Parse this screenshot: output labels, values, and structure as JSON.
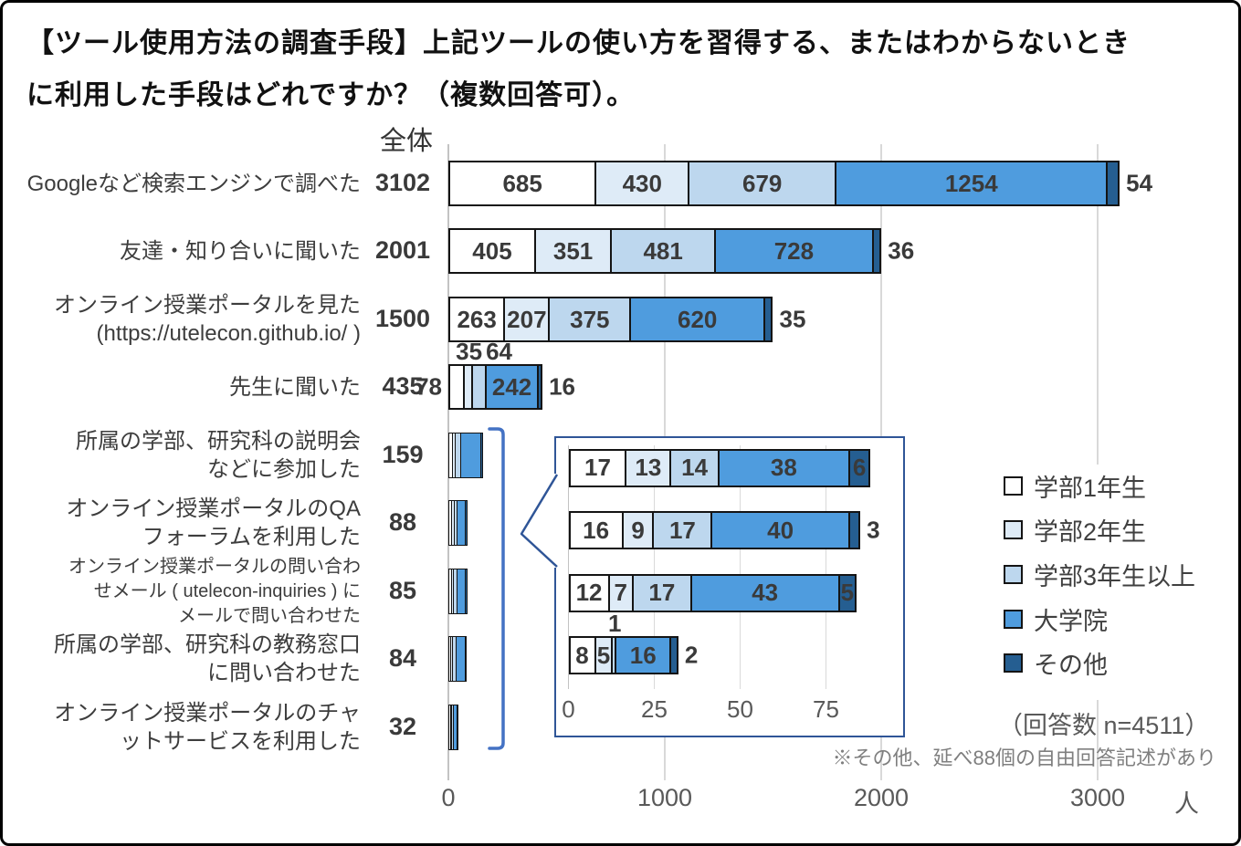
{
  "title_lines": [
    "【ツール使用方法の調査手段】上記ツールの使い方を習得する、またはわからないとき",
    "に利用した手段はどれですか？（複数回答可）。"
  ],
  "chart_data": {
    "type": "bar",
    "orientation": "horizontal",
    "stacked": true,
    "unit": "人",
    "total_column_header": "全体",
    "series": {
      "names": [
        "学部1年生",
        "学部2年生",
        "学部3年生以上",
        "大学院",
        "その他"
      ],
      "colors": [
        "#FFFFFF",
        "#DEEBF7",
        "#BDD7EE",
        "#4F9CDE",
        "#255E91"
      ]
    },
    "x_axis": {
      "ticks": [
        0,
        1000,
        2000,
        3000
      ]
    },
    "rows": [
      {
        "label_lines": [
          "Googleなど検索エンジンで調べた"
        ],
        "total": 3102,
        "values": [
          685,
          430,
          679,
          1254,
          54
        ],
        "labels": true
      },
      {
        "label_lines": [
          "友達・知り合いに聞いた"
        ],
        "total": 2001,
        "values": [
          405,
          351,
          481,
          728,
          36
        ],
        "labels": true
      },
      {
        "label_lines": [
          "オンライン授業ポータルを見た",
          "(https://utelecon.github.io/ )"
        ],
        "total": 1500,
        "values": [
          263,
          207,
          375,
          620,
          35
        ],
        "labels": true
      },
      {
        "label_lines": [
          "先生に聞いた"
        ],
        "total": 435,
        "values": [
          78,
          35,
          64,
          242,
          16
        ],
        "labels": true
      },
      {
        "label_lines": [
          "所属の学部、研究科の説明会",
          "などに参加した"
        ],
        "total": 159,
        "values": [
          20,
          12,
          25,
          93,
          9
        ],
        "labels": false,
        "estimated": true
      },
      {
        "label_lines": [
          "オンライン授業ポータルのQA",
          "フォーラムを利用した"
        ],
        "total": 88,
        "values": [
          17,
          13,
          14,
          38,
          6
        ],
        "labels": false
      },
      {
        "label_lines": [
          "オンライン授業ポータルの問い合わ",
          "せメール ( utelecon-inquiries ) に",
          "メールで問い合わせた"
        ],
        "total": 85,
        "values": [
          16,
          9,
          17,
          40,
          3
        ],
        "labels": false
      },
      {
        "label_lines": [
          "所属の学部、研究科の教務窓口",
          "に問い合わせた"
        ],
        "total": 84,
        "values": [
          12,
          7,
          17,
          43,
          5
        ],
        "labels": false
      },
      {
        "label_lines": [
          "オンライン授業ポータルのチャ",
          "ットサービスを利用した"
        ],
        "total": 32,
        "values": [
          8,
          5,
          1,
          16,
          2
        ],
        "labels": false
      }
    ],
    "inset": {
      "x_axis": {
        "ticks": [
          0,
          25,
          50,
          75
        ]
      },
      "rows": [
        {
          "total": 88,
          "values": [
            17,
            13,
            14,
            38,
            6
          ],
          "labels": true
        },
        {
          "total": 85,
          "values": [
            16,
            9,
            17,
            40,
            3
          ],
          "labels": true
        },
        {
          "total": 84,
          "values": [
            12,
            7,
            17,
            43,
            5
          ],
          "labels": true
        },
        {
          "total": 32,
          "values": [
            8,
            5,
            1,
            16,
            2
          ],
          "labels": true
        }
      ]
    },
    "legend_position": "right",
    "annotations": {
      "respondents": "（回答数 n=4511）",
      "footnote": "※その他、延べ88個の自由回答記述があり"
    }
  }
}
